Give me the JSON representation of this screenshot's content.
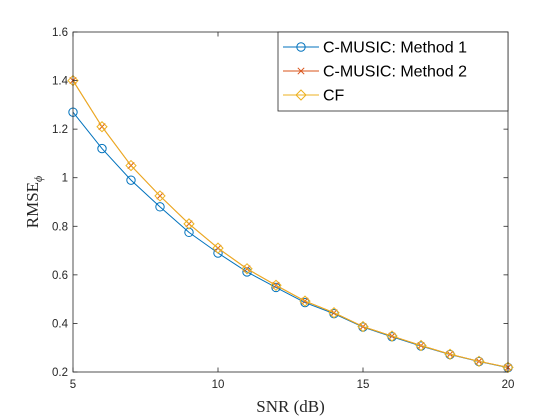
{
  "chart_data": {
    "type": "line",
    "xlabel": "SNR  (dB)",
    "ylabel_main": "RMSE",
    "ylabel_sub": "ϕ",
    "xlim": [
      5,
      20
    ],
    "ylim": [
      0.2,
      1.6
    ],
    "xticks": [
      5,
      10,
      15,
      20
    ],
    "xtick_labels": [
      "5",
      "10",
      "15",
      "20"
    ],
    "yticks": [
      0.2,
      0.4,
      0.6,
      0.8,
      1.0,
      1.2,
      1.4,
      1.6
    ],
    "ytick_labels": [
      "0.2",
      "0.4",
      "0.6",
      "0.8",
      "1",
      "1.2",
      "1.4",
      "1.6"
    ],
    "grid": false,
    "legend_position": "top-right",
    "x": [
      5,
      6,
      7,
      8,
      9,
      10,
      11,
      12,
      13,
      14,
      15,
      16,
      17,
      18,
      19,
      20
    ],
    "series": [
      {
        "name": "C-MUSIC: Method 1",
        "color": "#0072BD",
        "marker": "circle",
        "values": [
          1.27,
          1.12,
          0.99,
          0.88,
          0.775,
          0.69,
          0.612,
          0.548,
          0.486,
          0.44,
          0.385,
          0.345,
          0.307,
          0.272,
          0.243,
          0.218
        ]
      },
      {
        "name": "C-MUSIC: Method 2",
        "color": "#D95319",
        "marker": "x",
        "values": [
          1.4,
          1.21,
          1.05,
          0.925,
          0.81,
          0.71,
          0.625,
          0.557,
          0.492,
          0.444,
          0.387,
          0.348,
          0.309,
          0.273,
          0.244,
          0.219
        ]
      },
      {
        "name": "CF",
        "color": "#EDB120",
        "marker": "diamond",
        "values": [
          1.4,
          1.21,
          1.05,
          0.925,
          0.81,
          0.71,
          0.625,
          0.557,
          0.492,
          0.444,
          0.387,
          0.348,
          0.309,
          0.273,
          0.244,
          0.219
        ]
      }
    ]
  }
}
